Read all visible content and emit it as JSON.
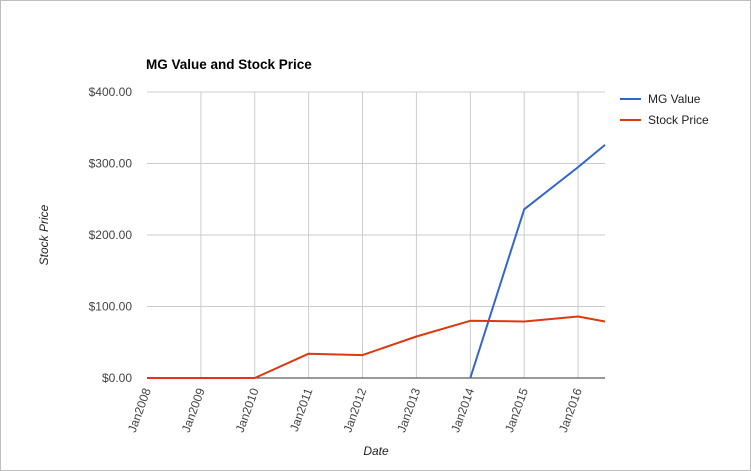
{
  "chart_data": {
    "type": "line",
    "title": "MG Value and Stock Price",
    "xlabel": "Date",
    "ylabel": "Stock Price",
    "x_ticks": [
      "Jan2008",
      "Jan2009",
      "Jan2010",
      "Jan2011",
      "Jan2012",
      "Jan2013",
      "Jan2014",
      "Jan2015",
      "Jan2016"
    ],
    "y_ticks": [
      "$0.00",
      "$100.00",
      "$200.00",
      "$300.00",
      "$400.00"
    ],
    "ylim": [
      0,
      400
    ],
    "xlim": [
      "2008-01",
      "2016-07"
    ],
    "grid": true,
    "legend_position": "right",
    "series": [
      {
        "name": "MG Value",
        "color": "#3366cc",
        "points": [
          {
            "x": "2014-01",
            "y": 0
          },
          {
            "x": "2015-01",
            "y": 236
          },
          {
            "x": "2016-01",
            "y": 295
          },
          {
            "x": "2016-07",
            "y": 326
          }
        ]
      },
      {
        "name": "Stock Price",
        "color": "#dc3912",
        "points": [
          {
            "x": "2008-01",
            "y": 0
          },
          {
            "x": "2009-01",
            "y": 0
          },
          {
            "x": "2010-01",
            "y": 0
          },
          {
            "x": "2011-01",
            "y": 34
          },
          {
            "x": "2012-01",
            "y": 32
          },
          {
            "x": "2013-01",
            "y": 58
          },
          {
            "x": "2014-01",
            "y": 80
          },
          {
            "x": "2015-01",
            "y": 79
          },
          {
            "x": "2016-01",
            "y": 86
          },
          {
            "x": "2016-07",
            "y": 79
          }
        ]
      }
    ]
  }
}
